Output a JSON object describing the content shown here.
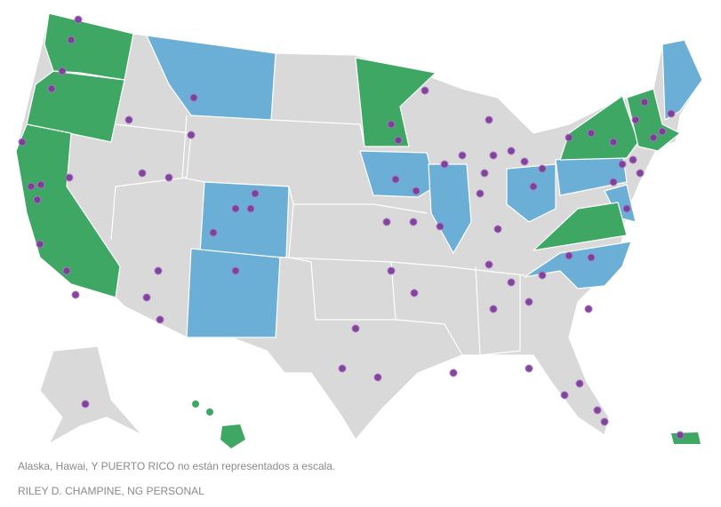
{
  "caption": "Alaska, Hawai, Y PUERTO RICO no están representados a escala.",
  "credit": "RILEY D. CHAMPINE, NG PERSONAL"
}
